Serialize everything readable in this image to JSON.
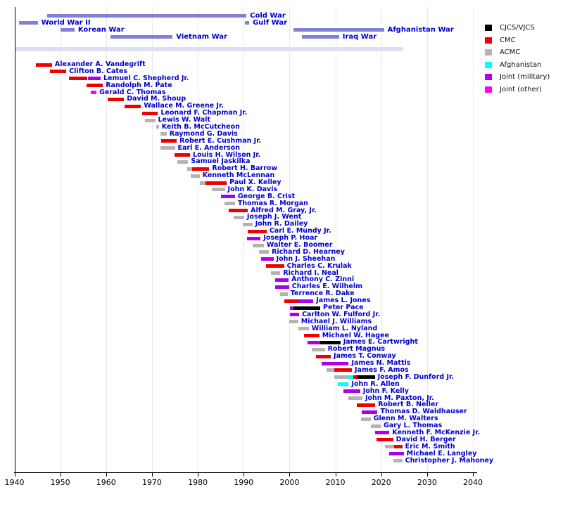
{
  "chart_data": {
    "type": "bar",
    "variant": "timeline-gantt",
    "title": "",
    "grid": true,
    "legend_position": "top-right",
    "axis": {
      "min": 1940,
      "max": 2040,
      "ticks": [
        1940,
        1950,
        1960,
        1970,
        1980,
        1990,
        2000,
        2010,
        2020,
        2030,
        2040
      ]
    },
    "colors": {
      "cjcs": "#000000",
      "cmc": "#ee0000",
      "acmc": "#b3b3b3",
      "afg": "#00ffff",
      "jm": "#aa00ee",
      "jo": "#ff00ff",
      "war": "#8181d6",
      "band": "#dedef4",
      "link_text": "#0000cc",
      "grid": "#e7e7f0",
      "axis_line": "#000000"
    },
    "legend": [
      {
        "label": "CJCS/VJCS",
        "key": "cjcs"
      },
      {
        "label": "CMC",
        "key": "cmc"
      },
      {
        "label": "ACMC",
        "key": "acmc"
      },
      {
        "label": "Afghanistan",
        "key": "afg"
      },
      {
        "label": "Joint (military)",
        "key": "jm"
      },
      {
        "label": "Joint (other)",
        "key": "jo"
      }
    ],
    "present_band": {
      "start": 1940,
      "end": 2024.8
    },
    "wars": [
      {
        "name": "Cold War",
        "start": 1947.1,
        "end": 1990.6,
        "row": 0
      },
      {
        "name": "World War II",
        "start": 1941.0,
        "end": 1945.1,
        "row": 1
      },
      {
        "name": "Gulf War",
        "start": 1990.2,
        "end": 1991.2,
        "row": 1
      },
      {
        "name": "Korean War",
        "start": 1950.0,
        "end": 1953.1,
        "row": 2
      },
      {
        "name": "Afghanistan War",
        "start": 2000.8,
        "end": 2020.6,
        "row": 2
      },
      {
        "name": "Vietnam War",
        "start": 1960.9,
        "end": 1974.5,
        "row": 3
      },
      {
        "name": "Iraq War",
        "start": 2002.7,
        "end": 2010.8,
        "row": 3
      }
    ],
    "people": [
      {
        "name": "Alexander A. Vandegrift",
        "segments": [
          {
            "start": 1944.7,
            "end": 1948.2,
            "role": "cmc"
          }
        ]
      },
      {
        "name": "Clifton B. Cates",
        "segments": [
          {
            "start": 1947.8,
            "end": 1951.3,
            "role": "cmc"
          }
        ]
      },
      {
        "name": "Lemuel C. Shepherd Jr.",
        "segments": [
          {
            "start": 1951.9,
            "end": 1955.9,
            "role": "cmc"
          },
          {
            "start": 1956.1,
            "end": 1958.8,
            "role": "jm"
          }
        ]
      },
      {
        "name": "Randolph M. Pate",
        "segments": [
          {
            "start": 1955.8,
            "end": 1959.3,
            "role": "cmc"
          }
        ]
      },
      {
        "name": "Gerald C. Thomas",
        "segments": [
          {
            "start": 1956.7,
            "end": 1957.9,
            "role": "jo"
          }
        ]
      },
      {
        "name": "David M. Shoup",
        "segments": [
          {
            "start": 1960.4,
            "end": 1963.9,
            "role": "cmc"
          }
        ]
      },
      {
        "name": "Wallace M. Greene Jr.",
        "segments": [
          {
            "start": 1964.0,
            "end": 1967.6,
            "role": "cmc"
          }
        ]
      },
      {
        "name": "Leonard F. Chapman Jr.",
        "segments": [
          {
            "start": 1967.9,
            "end": 1971.3,
            "role": "cmc"
          }
        ]
      },
      {
        "name": "Lewis W. Walt",
        "segments": [
          {
            "start": 1968.5,
            "end": 1970.7,
            "role": "acmc"
          }
        ]
      },
      {
        "name": "Keith B. McCutcheon",
        "segments": [
          {
            "start": 1971.0,
            "end": 1971.5,
            "role": "acmc"
          }
        ]
      },
      {
        "name": "Raymond G. Davis",
        "segments": [
          {
            "start": 1971.8,
            "end": 1973.2,
            "role": "acmc"
          }
        ]
      },
      {
        "name": "Robert E. Cushman Jr.",
        "segments": [
          {
            "start": 1972.0,
            "end": 1975.4,
            "role": "cmc"
          }
        ]
      },
      {
        "name": "Earl E. Anderson",
        "segments": [
          {
            "start": 1971.8,
            "end": 1975.0,
            "role": "acmc"
          }
        ]
      },
      {
        "name": "Louis H. Wilson Jr.",
        "segments": [
          {
            "start": 1974.9,
            "end": 1978.3,
            "role": "cmc"
          }
        ]
      },
      {
        "name": "Samuel Jaskilka",
        "segments": [
          {
            "start": 1975.5,
            "end": 1977.9,
            "role": "acmc"
          }
        ]
      },
      {
        "name": "Robert H. Barrow",
        "segments": [
          {
            "start": 1977.7,
            "end": 1978.7,
            "role": "acmc"
          },
          {
            "start": 1978.7,
            "end": 1982.5,
            "role": "cmc"
          }
        ]
      },
      {
        "name": "Kenneth McLennan",
        "segments": [
          {
            "start": 1978.4,
            "end": 1980.4,
            "role": "acmc"
          }
        ]
      },
      {
        "name": "Paul X. Kelley",
        "segments": [
          {
            "start": 1980.4,
            "end": 1981.7,
            "role": "acmc"
          },
          {
            "start": 1981.7,
            "end": 1986.3,
            "role": "cmc"
          }
        ]
      },
      {
        "name": "John K. Davis",
        "segments": [
          {
            "start": 1983.0,
            "end": 1985.9,
            "role": "acmc"
          }
        ]
      },
      {
        "name": "George B. Crist",
        "segments": [
          {
            "start": 1985.0,
            "end": 1988.1,
            "role": "jm"
          }
        ]
      },
      {
        "name": "Thomas R. Morgan",
        "segments": [
          {
            "start": 1985.8,
            "end": 1988.1,
            "role": "acmc"
          }
        ]
      },
      {
        "name": "Alfred M. Gray, Jr.",
        "segments": [
          {
            "start": 1986.7,
            "end": 1990.9,
            "role": "cmc"
          }
        ]
      },
      {
        "name": "Joseph J. Went",
        "segments": [
          {
            "start": 1987.8,
            "end": 1990.1,
            "role": "acmc"
          }
        ]
      },
      {
        "name": "John R. Dailey",
        "segments": [
          {
            "start": 1989.8,
            "end": 1991.9,
            "role": "acmc"
          }
        ]
      },
      {
        "name": "Carl E. Mundy Jr.",
        "segments": [
          {
            "start": 1990.9,
            "end": 1995.0,
            "role": "cmc"
          }
        ]
      },
      {
        "name": "Joseph P. Hoar",
        "segments": [
          {
            "start": 1990.8,
            "end": 1993.7,
            "role": "jm"
          }
        ]
      },
      {
        "name": "Walter E. Boomer",
        "segments": [
          {
            "start": 1991.9,
            "end": 1994.4,
            "role": "acmc"
          }
        ]
      },
      {
        "name": "Richard D. Hearney",
        "segments": [
          {
            "start": 1993.4,
            "end": 1995.5,
            "role": "acmc"
          }
        ]
      },
      {
        "name": "John J. Sheehan",
        "segments": [
          {
            "start": 1993.8,
            "end": 1996.5,
            "role": "jm"
          }
        ]
      },
      {
        "name": "Charles C. Krulak",
        "segments": [
          {
            "start": 1994.8,
            "end": 1998.8,
            "role": "cmc"
          }
        ]
      },
      {
        "name": "Richard I. Neal",
        "segments": [
          {
            "start": 1996.0,
            "end": 1998.0,
            "role": "acmc"
          }
        ]
      },
      {
        "name": "Anthony C. Zinni",
        "segments": [
          {
            "start": 1996.8,
            "end": 1999.8,
            "role": "jm"
          }
        ]
      },
      {
        "name": "Charles E. Wilhelm",
        "segments": [
          {
            "start": 1996.9,
            "end": 1999.9,
            "role": "jm"
          }
        ]
      },
      {
        "name": "Terrence R. Dake",
        "segments": [
          {
            "start": 1997.9,
            "end": 1999.6,
            "role": "acmc"
          }
        ]
      },
      {
        "name": "James L. Jones",
        "segments": [
          {
            "start": 1998.8,
            "end": 2001.9,
            "role": "cmc"
          },
          {
            "start": 2001.9,
            "end": 2005.2,
            "role": "jm"
          }
        ]
      },
      {
        "name": "Peter Pace",
        "segments": [
          {
            "start": 2000.1,
            "end": 2000.9,
            "role": "jm"
          },
          {
            "start": 2000.9,
            "end": 2006.7,
            "role": "cjcs"
          }
        ]
      },
      {
        "name": "Carlton W. Fulford Jr.",
        "segments": [
          {
            "start": 2000.1,
            "end": 2002.1,
            "role": "jm"
          }
        ]
      },
      {
        "name": "Michael J. Williams",
        "segments": [
          {
            "start": 2000.0,
            "end": 2001.9,
            "role": "acmc"
          }
        ]
      },
      {
        "name": "William L. Nyland",
        "segments": [
          {
            "start": 2001.9,
            "end": 2004.2,
            "role": "acmc"
          }
        ]
      },
      {
        "name": "Michael W. Hagee",
        "segments": [
          {
            "start": 2003.1,
            "end": 2006.5,
            "role": "cmc"
          }
        ]
      },
      {
        "name": "James E. Cartwright",
        "segments": [
          {
            "start": 2003.9,
            "end": 2006.7,
            "role": "jm"
          },
          {
            "start": 2006.7,
            "end": 2011.1,
            "role": "cjcs"
          }
        ]
      },
      {
        "name": "Robert Magnus",
        "segments": [
          {
            "start": 2004.9,
            "end": 2007.7,
            "role": "acmc"
          }
        ]
      },
      {
        "name": "James T. Conway",
        "segments": [
          {
            "start": 2005.8,
            "end": 2009.0,
            "role": "cmc"
          }
        ]
      },
      {
        "name": "James N. Mattis",
        "segments": [
          {
            "start": 2007.0,
            "end": 2012.9,
            "role": "jm"
          }
        ]
      },
      {
        "name": "James F. Amos",
        "segments": [
          {
            "start": 2008.0,
            "end": 2009.8,
            "role": "acmc"
          },
          {
            "start": 2009.8,
            "end": 2013.6,
            "role": "cmc"
          }
        ]
      },
      {
        "name": "Joseph F. Dunford Jr.",
        "segments": [
          {
            "start": 2009.8,
            "end": 2012.8,
            "role": "acmc"
          },
          {
            "start": 2012.8,
            "end": 2013.9,
            "role": "afg"
          },
          {
            "start": 2013.9,
            "end": 2014.7,
            "role": "cmc"
          },
          {
            "start": 2014.7,
            "end": 2018.6,
            "role": "cjcs"
          }
        ]
      },
      {
        "name": "John R. Allen",
        "segments": [
          {
            "start": 2010.6,
            "end": 2012.9,
            "role": "afg"
          }
        ]
      },
      {
        "name": "John F. Kelly",
        "segments": [
          {
            "start": 2011.8,
            "end": 2015.4,
            "role": "jm"
          }
        ]
      },
      {
        "name": "John M. Paxton, Jr.",
        "segments": [
          {
            "start": 2012.9,
            "end": 2015.9,
            "role": "acmc"
          }
        ]
      },
      {
        "name": "Robert B. Neller",
        "segments": [
          {
            "start": 2014.7,
            "end": 2018.7,
            "role": "cmc"
          }
        ]
      },
      {
        "name": "Thomas D. Waldhauser",
        "segments": [
          {
            "start": 2015.7,
            "end": 2019.2,
            "role": "jm"
          }
        ]
      },
      {
        "name": "Glenn M. Walters",
        "segments": [
          {
            "start": 2015.6,
            "end": 2017.7,
            "role": "acmc"
          }
        ]
      },
      {
        "name": "Gary L. Thomas",
        "segments": [
          {
            "start": 2017.7,
            "end": 2019.9,
            "role": "acmc"
          }
        ]
      },
      {
        "name": "Kenneth F. McKenzie Jr.",
        "segments": [
          {
            "start": 2018.6,
            "end": 2021.8,
            "role": "jm"
          }
        ]
      },
      {
        "name": "David H. Berger",
        "segments": [
          {
            "start": 2018.9,
            "end": 2022.6,
            "role": "cmc"
          }
        ]
      },
      {
        "name": "Eric M. Smith",
        "segments": [
          {
            "start": 2020.8,
            "end": 2022.8,
            "role": "acmc"
          },
          {
            "start": 2022.8,
            "end": 2024.6,
            "role": "cmc"
          }
        ]
      },
      {
        "name": "Michael E. Langley",
        "segments": [
          {
            "start": 2021.8,
            "end": 2024.9,
            "role": "jm"
          }
        ]
      },
      {
        "name": "Christopher J. Mahoney",
        "segments": [
          {
            "start": 2022.7,
            "end": 2024.6,
            "role": "acmc"
          }
        ]
      }
    ]
  }
}
